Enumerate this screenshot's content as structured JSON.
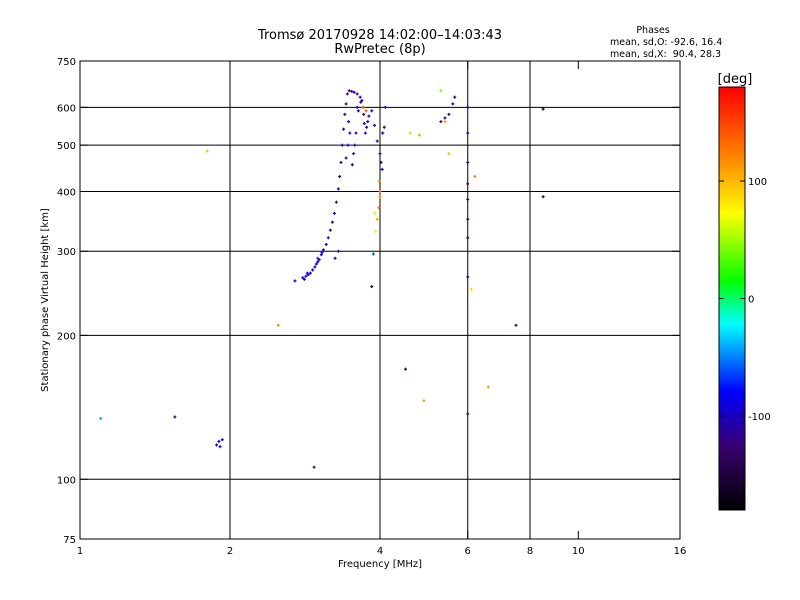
{
  "chart_data": {
    "type": "scatter",
    "title": "Tromsø 20170928 14:02:00–14:03:43",
    "subtitle": "RwPretec (8p)",
    "xlabel": "Frequency [MHz]",
    "ylabel": "Stationary phase Virtual Height [km]",
    "xscale": "log",
    "yscale": "log",
    "xlim": [
      1,
      16
    ],
    "ylim": [
      75,
      750
    ],
    "xticks": [
      1,
      2,
      4,
      6,
      8,
      10,
      16
    ],
    "yticks": [
      75,
      100,
      200,
      300,
      400,
      500,
      600,
      750
    ],
    "grid_x": [
      2,
      4,
      6,
      8
    ],
    "grid_y": [
      100,
      200,
      300,
      400,
      500,
      600
    ],
    "stats_header": "Phases",
    "stats_lines": [
      "mean, sd,O: -92.6, 16.4",
      "mean, sd,X:  90.4, 28.3"
    ],
    "colorbar": {
      "label": "[deg]",
      "range": [
        -180,
        180
      ],
      "ticks": [
        100,
        0,
        -100
      ]
    },
    "series": [
      {
        "points": [
          [
            2.7,
            260,
            -100
          ],
          [
            2.82,
            262,
            -110
          ],
          [
            2.84,
            266,
            -90
          ],
          [
            2.87,
            268,
            -95
          ],
          [
            2.9,
            270,
            -105
          ],
          [
            2.93,
            274,
            -100
          ],
          [
            2.96,
            278,
            -110
          ],
          [
            2.98,
            282,
            -95
          ],
          [
            3.0,
            285,
            -100
          ],
          [
            3.02,
            288,
            -115
          ],
          [
            3.05,
            295,
            -105
          ],
          [
            3.08,
            302,
            -100
          ],
          [
            3.12,
            310,
            -110
          ],
          [
            3.15,
            320,
            -105
          ],
          [
            3.18,
            332,
            -100
          ],
          [
            3.21,
            345,
            -108
          ],
          [
            3.24,
            360,
            -112
          ],
          [
            3.27,
            380,
            -105
          ],
          [
            3.3,
            405,
            -100
          ],
          [
            3.32,
            430,
            -110
          ],
          [
            3.34,
            460,
            -115
          ],
          [
            3.36,
            500,
            -108
          ],
          [
            3.38,
            540,
            -112
          ],
          [
            3.4,
            580,
            -118
          ],
          [
            3.42,
            610,
            -110
          ],
          [
            3.44,
            640,
            -115
          ],
          [
            3.47,
            650,
            -112
          ],
          [
            3.51,
            648,
            -118
          ],
          [
            3.55,
            645,
            -110
          ],
          [
            3.6,
            640,
            -115
          ],
          [
            3.65,
            630,
            -108
          ],
          [
            3.68,
            620,
            -105
          ],
          [
            3.7,
            600,
            -110
          ],
          [
            3.71,
            580,
            -112
          ],
          [
            3.72,
            555,
            -100
          ],
          [
            3.74,
            530,
            -95
          ],
          [
            3.76,
            545,
            -100
          ],
          [
            3.78,
            560,
            -105
          ],
          [
            3.8,
            575,
            -110
          ],
          [
            3.85,
            590,
            -108
          ],
          [
            3.9,
            550,
            -100
          ],
          [
            3.95,
            510,
            -105
          ],
          [
            4.0,
            480,
            -110
          ],
          [
            4.02,
            460,
            -115
          ],
          [
            4.04,
            445,
            -110
          ],
          [
            4.05,
            530,
            -108
          ],
          [
            4.08,
            545,
            -100
          ],
          [
            3.46,
            560,
            -105
          ],
          [
            3.48,
            530,
            -110
          ],
          [
            3.45,
            500,
            -100
          ],
          [
            3.42,
            470,
            -95
          ],
          [
            3.58,
            530,
            -100
          ],
          [
            3.56,
            500,
            -102
          ],
          [
            3.54,
            480,
            -98
          ],
          [
            3.52,
            455,
            -100
          ],
          [
            3.6,
            600,
            -110
          ],
          [
            3.66,
            615,
            -112
          ],
          [
            3.62,
            590,
            -108
          ],
          [
            3.3,
            300,
            -105
          ],
          [
            3.25,
            290,
            -100
          ],
          [
            5.3,
            560,
            -110
          ],
          [
            5.4,
            570,
            -108
          ],
          [
            5.5,
            580,
            -112
          ],
          [
            5.6,
            610,
            -105
          ],
          [
            5.65,
            630,
            -110
          ],
          [
            6.0,
            600,
            -120
          ],
          [
            6.0,
            530,
            -125
          ],
          [
            6.0,
            460,
            -130
          ],
          [
            6.0,
            415,
            -125
          ],
          [
            6.0,
            385,
            -128
          ],
          [
            6.0,
            350,
            -130
          ],
          [
            6.0,
            320,
            -125
          ],
          [
            6.0,
            265,
            -130
          ],
          [
            6.0,
            137,
            -125
          ],
          [
            4.1,
            600,
            -105
          ],
          [
            2.8,
            264,
            -80
          ],
          [
            2.86,
            270,
            -75
          ],
          [
            3.0,
            290,
            -70
          ],
          [
            3.06,
            298,
            -75
          ],
          [
            4.5,
            170,
            -130
          ],
          [
            2.95,
            106,
            -130
          ],
          [
            1.55,
            135,
            -120
          ],
          [
            1.9,
            120,
            -90
          ],
          [
            1.91,
            117,
            -95
          ],
          [
            1.88,
            118,
            -85
          ],
          [
            1.93,
            121,
            -100
          ],
          [
            7.5,
            210,
            -135
          ],
          [
            8.5,
            390,
            -150
          ],
          [
            3.85,
            253,
            -150
          ],
          [
            8.5,
            595,
            -170
          ]
        ]
      },
      {
        "points": [
          [
            1.1,
            134,
            -40
          ],
          [
            3.88,
            296,
            -60
          ],
          [
            3.9,
            360,
            60
          ],
          [
            3.92,
            330,
            80
          ],
          [
            3.95,
            350,
            110
          ],
          [
            3.98,
            370,
            130
          ],
          [
            4.0,
            390,
            120
          ],
          [
            4.0,
            400,
            140
          ],
          [
            3.98,
            420,
            100
          ],
          [
            3.7,
            600,
            130
          ],
          [
            3.75,
            590,
            140
          ],
          [
            4.6,
            530,
            95
          ],
          [
            4.8,
            525,
            110
          ],
          [
            5.3,
            650,
            40
          ],
          [
            5.5,
            480,
            100
          ],
          [
            5.4,
            560,
            110
          ],
          [
            6.2,
            430,
            125
          ],
          [
            6.1,
            250,
            90
          ],
          [
            6.6,
            156,
            110
          ],
          [
            4.9,
            146,
            110
          ],
          [
            1.8,
            486,
            100
          ],
          [
            2.5,
            210,
            120
          ]
        ]
      }
    ]
  }
}
